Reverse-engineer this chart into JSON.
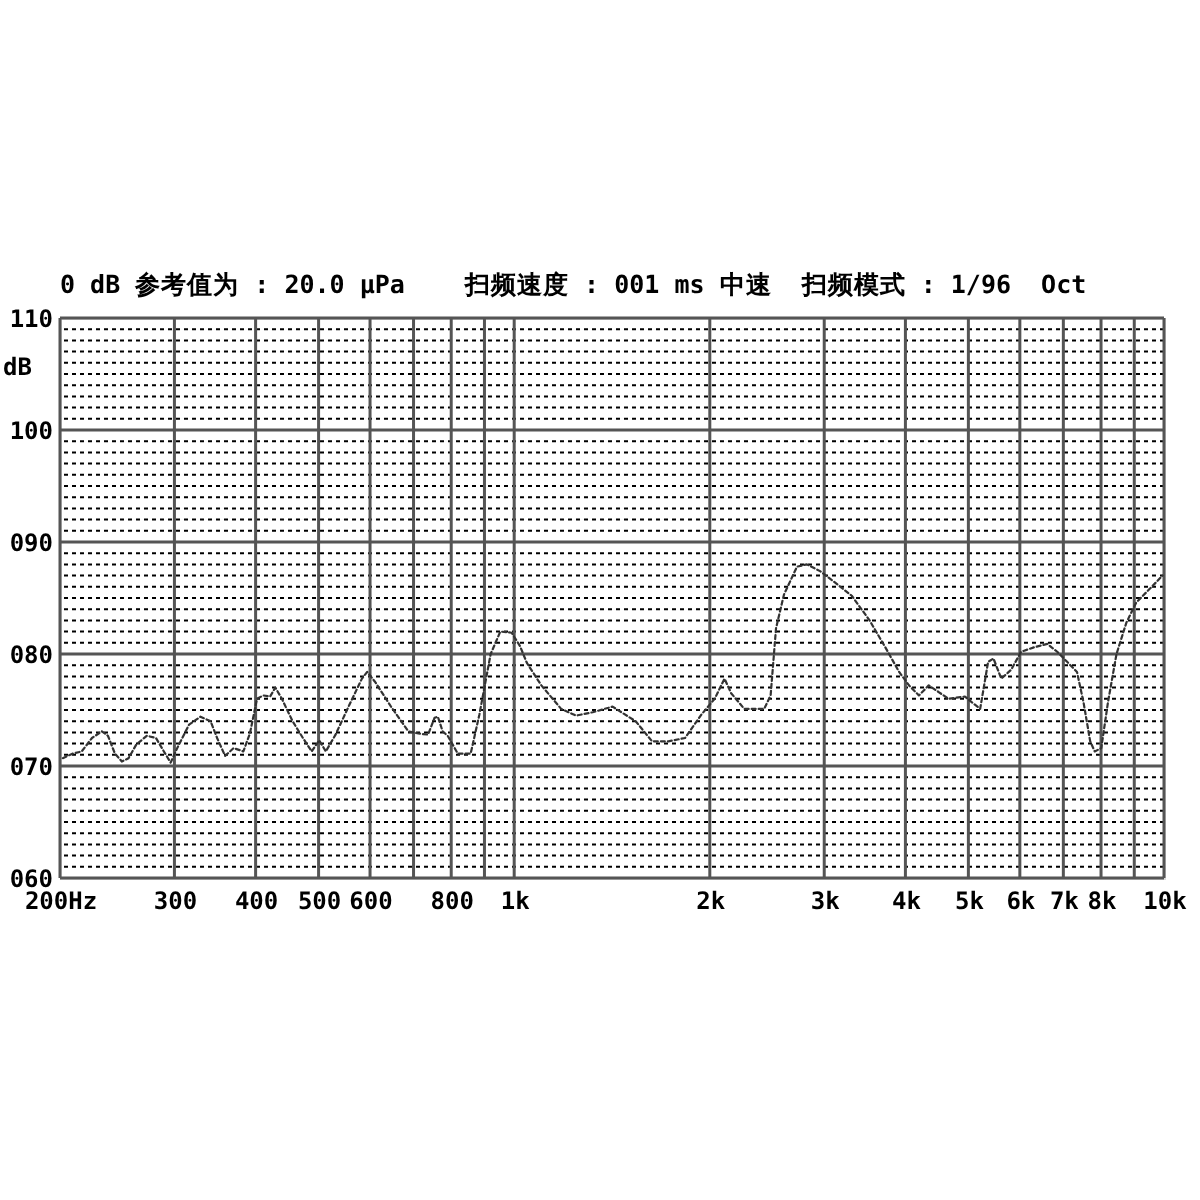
{
  "chart_data": {
    "type": "line",
    "title": "0 dB 参考值为 : 20.0 μPa    扫频速度 : 001 ms 中速  扫频模式 : 1/96  Oct",
    "ylabel": "dB",
    "log": "x",
    "xlim": [
      200,
      10000
    ],
    "xticks": [
      {
        "value": 200,
        "label": "200Hz"
      },
      300,
      400,
      500,
      600,
      {
        "value": 700,
        "label": null
      },
      800,
      {
        "value": 900,
        "label": null
      },
      {
        "value": 1000,
        "label": "1k"
      },
      {
        "value": 2000,
        "label": "2k"
      },
      {
        "value": 3000,
        "label": "3k"
      },
      {
        "value": 4000,
        "label": "4k"
      },
      {
        "value": 5000,
        "label": "5k"
      },
      {
        "value": 6000,
        "label": "6k"
      },
      {
        "value": 7000,
        "label": "7k"
      },
      {
        "value": 8000,
        "label": "8k"
      },
      {
        "value": 9000,
        "label": null
      },
      {
        "value": 10000,
        "label": "10k"
      }
    ],
    "ylim": [
      60,
      110
    ],
    "yticks": [
      {
        "value": 60,
        "label": "060"
      },
      {
        "value": 61,
        "label": null
      },
      {
        "value": 62,
        "label": null
      },
      {
        "value": 63,
        "label": null
      },
      {
        "value": 64,
        "label": null
      },
      {
        "value": 65,
        "label": null
      },
      {
        "value": 66,
        "label": null
      },
      {
        "value": 67,
        "label": null
      },
      {
        "value": 68,
        "label": null
      },
      {
        "value": 69,
        "label": null
      },
      {
        "value": 70,
        "label": "070"
      },
      {
        "value": 71,
        "label": null
      },
      {
        "value": 72,
        "label": null
      },
      {
        "value": 73,
        "label": null
      },
      {
        "value": 74,
        "label": null
      },
      {
        "value": 75,
        "label": null
      },
      {
        "value": 76,
        "label": null
      },
      {
        "value": 77,
        "label": null
      },
      {
        "value": 78,
        "label": null
      },
      {
        "value": 79,
        "label": null
      },
      {
        "value": 80,
        "label": "080"
      },
      {
        "value": 81,
        "label": null
      },
      {
        "value": 82,
        "label": null
      },
      {
        "value": 83,
        "label": null
      },
      {
        "value": 84,
        "label": null
      },
      {
        "value": 85,
        "label": null
      },
      {
        "value": 86,
        "label": null
      },
      {
        "value": 87,
        "label": null
      },
      {
        "value": 88,
        "label": null
      },
      {
        "value": 89,
        "label": null
      },
      {
        "value": 90,
        "label": "090"
      },
      {
        "value": 91,
        "label": null
      },
      {
        "value": 92,
        "label": null
      },
      {
        "value": 93,
        "label": null
      },
      {
        "value": 94,
        "label": null
      },
      {
        "value": 95,
        "label": null
      },
      {
        "value": 96,
        "label": null
      },
      {
        "value": 97,
        "label": null
      },
      {
        "value": 98,
        "label": null
      },
      {
        "value": 99,
        "label": null
      },
      {
        "value": 100,
        "label": "100"
      },
      {
        "value": 101,
        "label": null
      },
      {
        "value": 102,
        "label": null
      },
      {
        "value": 103,
        "label": null
      },
      {
        "value": 104,
        "label": null
      },
      {
        "value": 105,
        "label": null
      },
      {
        "value": 106,
        "label": null
      },
      {
        "value": 107,
        "label": null
      },
      {
        "value": 108,
        "label": null
      },
      {
        "value": 109,
        "label": null
      },
      {
        "value": 110,
        "label": "110"
      }
    ],
    "grid": true,
    "line_style": "dotted",
    "x": [
      202,
      209,
      216,
      224,
      232,
      237,
      243,
      249,
      255,
      262,
      272,
      281,
      289,
      296,
      303,
      316,
      329,
      341,
      349,
      359,
      370,
      383,
      392,
      402,
      411,
      421,
      429,
      439,
      456,
      473,
      488,
      501,
      513,
      531,
      557,
      583,
      594,
      611,
      648,
      687,
      712,
      737,
      754,
      763,
      776,
      790,
      819,
      857,
      884,
      920,
      952,
      991,
      1021,
      1046,
      1101,
      1181,
      1245,
      1321,
      1417,
      1538,
      1630,
      1727,
      1832,
      1942,
      2035,
      2107,
      2157,
      2260,
      2425,
      2481,
      2529,
      2601,
      2724,
      2821,
      2956,
      3098,
      3307,
      3523,
      3733,
      3912,
      4051,
      4196,
      4345,
      4500,
      4660,
      4940,
      5059,
      5213,
      5362,
      5464,
      5619,
      5819,
      6027,
      6311,
      6614,
      6850,
      7094,
      7347,
      7518,
      7699,
      7824,
      8007,
      8200,
      8451,
      8752,
      9064,
      9499,
      9949
    ],
    "series": [
      {
        "color": "#333333",
        "values": [
          70.7,
          71.1,
          71.3,
          72.5,
          73.1,
          72.7,
          71.1,
          70.4,
          70.7,
          71.9,
          72.7,
          72.5,
          71.3,
          70.3,
          71.6,
          73.7,
          74.4,
          74.0,
          72.5,
          70.9,
          71.6,
          71.3,
          72.9,
          76.0,
          76.3,
          76.2,
          77.0,
          76.0,
          74.0,
          72.5,
          71.3,
          72.3,
          71.3,
          72.8,
          75.4,
          77.8,
          78.4,
          77.5,
          75.2,
          73.1,
          72.9,
          72.8,
          74.3,
          74.4,
          73.1,
          72.7,
          71.1,
          71.1,
          74.6,
          80.0,
          82.0,
          81.9,
          80.7,
          79.2,
          77.2,
          75.1,
          74.5,
          74.8,
          75.3,
          74.0,
          72.2,
          72.2,
          72.5,
          74.6,
          76.0,
          77.8,
          76.5,
          75.1,
          75.1,
          76.3,
          82.3,
          85.3,
          87.8,
          88.0,
          87.4,
          86.5,
          85.2,
          83.0,
          80.5,
          78.4,
          77.2,
          76.3,
          77.2,
          76.6,
          76.0,
          76.2,
          75.7,
          75.1,
          79.3,
          79.6,
          77.8,
          78.6,
          80.2,
          80.6,
          80.9,
          80.2,
          79.3,
          78.4,
          75.7,
          72.2,
          71.3,
          71.6,
          75.7,
          80.0,
          82.8,
          84.6,
          85.8,
          87.0
        ]
      }
    ]
  }
}
